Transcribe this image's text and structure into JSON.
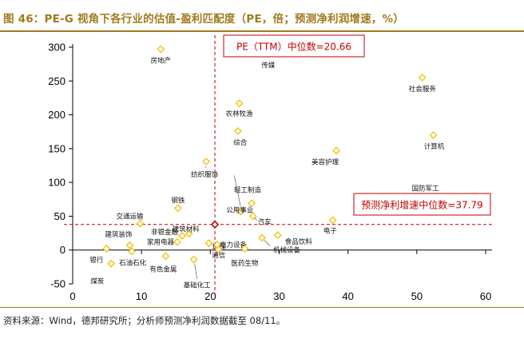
{
  "title": "图 46：PE-G 视角下各行业的估值-盈利匹配度（PE，倍；预测净利润增速，%）",
  "source": "资料来源：Wind，德邦研究所；分析师预测净利润数据截至 08/11。",
  "colors": {
    "title": "#a07a1e",
    "marker": "#f2c200",
    "median": "#c00000",
    "axis": "#000000"
  },
  "chart_data": {
    "type": "scatter",
    "x_ticks": [
      0,
      10,
      20,
      30,
      40,
      50,
      60
    ],
    "y_ticks": [
      -50,
      0,
      50,
      100,
      150,
      200,
      250,
      300
    ],
    "xlim": [
      0,
      60
    ],
    "ylim": [
      -50,
      300
    ],
    "median_pe": 20.66,
    "median_growth": 37.79,
    "median_pe_label": "PE（TTM）中位数=20.66",
    "median_growth_label": "预测净利增速中位数=37.79",
    "points": [
      {
        "name": "房地产",
        "x": 12.8,
        "y": 297
      },
      {
        "name": "传媒",
        "x": 28.4,
        "y": 290
      },
      {
        "name": "社会服务",
        "x": 50.8,
        "y": 255
      },
      {
        "name": "农林牧渔",
        "x": 24.2,
        "y": 217
      },
      {
        "name": "综合",
        "x": 24.0,
        "y": 176
      },
      {
        "name": "计算机",
        "x": 52.4,
        "y": 170
      },
      {
        "name": "美容护理",
        "x": 38.3,
        "y": 147
      },
      {
        "name": "纺织服饰",
        "x": 19.4,
        "y": 131
      },
      {
        "name": "国防军工",
        "x": 51.0,
        "y": 77
      },
      {
        "name": "轻工制造",
        "x": 26.0,
        "y": 69
      },
      {
        "name": "钢铁",
        "x": 15.3,
        "y": 62
      },
      {
        "name": "公用事业",
        "x": 24.4,
        "y": 57
      },
      {
        "name": "汽车",
        "x": 26.2,
        "y": 50
      },
      {
        "name": "交通运输",
        "x": 9.8,
        "y": 39
      },
      {
        "name": "电子",
        "x": 37.8,
        "y": 44
      },
      {
        "name": "建筑材料",
        "x": 16.9,
        "y": 24
      },
      {
        "name": "非银金融",
        "x": 15.9,
        "y": 21
      },
      {
        "name": "建筑装饰",
        "x": 8.3,
        "y": 7
      },
      {
        "name": "家用电器",
        "x": 15.2,
        "y": 12
      },
      {
        "name": "环保",
        "x": 19.8,
        "y": 10
      },
      {
        "name": "电力设备",
        "x": 21.0,
        "y": 8
      },
      {
        "name": "食品饮料",
        "x": 29.8,
        "y": 22
      },
      {
        "name": "机械设备",
        "x": 27.5,
        "y": 18
      },
      {
        "name": "银行",
        "x": 4.9,
        "y": 2
      },
      {
        "name": "石油石化",
        "x": 8.6,
        "y": -2
      },
      {
        "name": "通信",
        "x": 21.2,
        "y": 1
      },
      {
        "name": "医药生物",
        "x": 25.0,
        "y": 2
      },
      {
        "name": "有色金属",
        "x": 13.5,
        "y": -9
      },
      {
        "name": "基础化工",
        "x": 17.6,
        "y": -14
      },
      {
        "name": "煤炭",
        "x": 5.6,
        "y": -20
      }
    ]
  }
}
